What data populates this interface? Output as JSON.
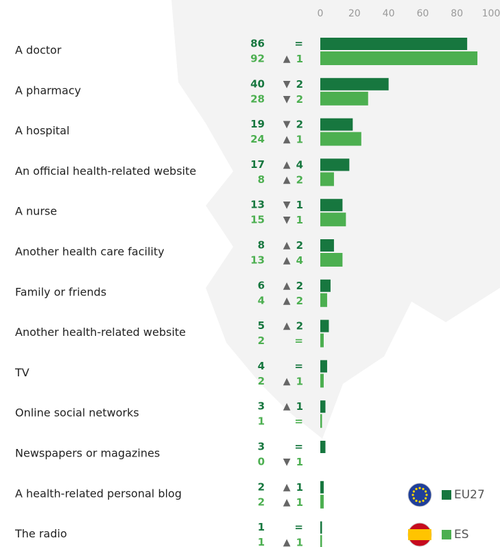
{
  "chart_data": {
    "type": "bar",
    "orientation": "horizontal",
    "categories": [
      "A doctor",
      "A pharmacy",
      "A hospital",
      "An official health-related website",
      "A nurse",
      "Another health care facility",
      "Family or friends",
      "Another health-related website",
      "TV",
      "Online social networks",
      "Newspapers or magazines",
      "A health-related personal blog",
      "The radio"
    ],
    "series": [
      {
        "name": "EU27",
        "color": "#17773f",
        "values": [
          86,
          40,
          19,
          17,
          13,
          8,
          6,
          5,
          4,
          3,
          3,
          2,
          1
        ],
        "change_labels": [
          "=",
          "▼ 2",
          "▼ 2",
          "▲ 4",
          "▼ 1",
          "▲ 2",
          "▲ 2",
          "▲ 2",
          "=",
          "▲ 1",
          "=",
          "▲ 1",
          "="
        ]
      },
      {
        "name": "ES",
        "color": "#4caf50",
        "values": [
          92,
          28,
          24,
          8,
          15,
          13,
          4,
          2,
          2,
          1,
          0,
          2,
          1
        ],
        "change_labels": [
          "▲ 1",
          "▼ 2",
          "▲ 1",
          "▲ 2",
          "▼ 1",
          "▲ 4",
          "▲ 2",
          "=",
          "▲ 1",
          "=",
          "▼ 1",
          "▲ 1",
          "▲ 1"
        ]
      }
    ],
    "xlim": [
      0,
      100
    ],
    "xticks": [
      0,
      20,
      40,
      60,
      80,
      100
    ]
  }
}
